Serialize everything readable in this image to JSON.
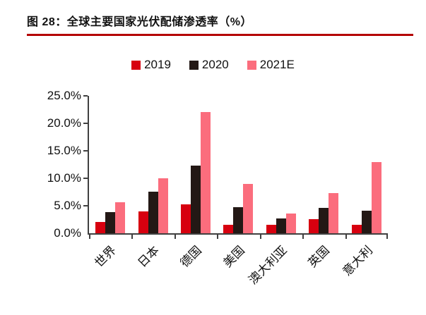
{
  "figure": {
    "title": "图 28：全球主要国家光伏配储渗透率（%）"
  },
  "chart_data": {
    "type": "bar",
    "title": "全球主要国家光伏配储渗透率（%）",
    "categories": [
      "世界",
      "日本",
      "德国",
      "美国",
      "澳大利亚",
      "英国",
      "意大利"
    ],
    "series": [
      {
        "name": "2019",
        "color": "#D7000F",
        "values": [
          2.0,
          4.0,
          5.2,
          1.5,
          1.5,
          2.6,
          1.5
        ]
      },
      {
        "name": "2020",
        "color": "#231815",
        "values": [
          3.8,
          7.5,
          12.3,
          4.7,
          2.7,
          4.6,
          4.1
        ]
      },
      {
        "name": "2021E",
        "color": "#FB6D7D",
        "values": [
          5.7,
          10.0,
          22.0,
          9.0,
          3.6,
          7.3,
          13.0
        ]
      }
    ],
    "xlabel": "",
    "ylabel": "",
    "ylim": [
      0,
      25
    ],
    "ytick_step": 5,
    "yticks": [
      "25.0%",
      "20.0%",
      "15.0%",
      "10.0%",
      "5.0%",
      "0.0%"
    ],
    "grid": false,
    "legend_position": "top"
  },
  "colors": {
    "title_underline": "#B40000",
    "axis": "#404040",
    "text": "#111111"
  }
}
